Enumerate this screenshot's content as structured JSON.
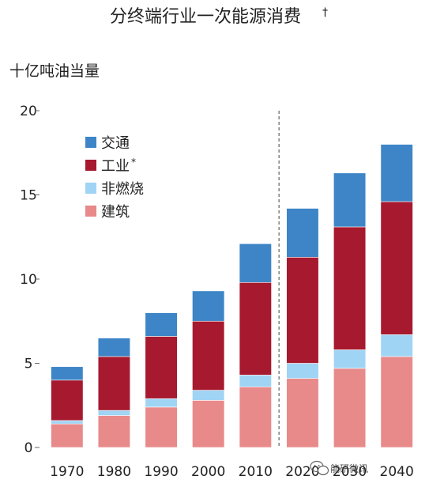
{
  "chart_data": {
    "type": "bar",
    "stacked": true,
    "title": "分终端行业一次能源消费",
    "title_mark": "†",
    "ylabel": "十亿吨油当量",
    "categories": [
      "1970",
      "1980",
      "1990",
      "2000",
      "2010",
      "2020",
      "2030",
      "2040"
    ],
    "ylim": [
      0,
      20
    ],
    "yticks": [
      0,
      5,
      10,
      15,
      20
    ],
    "projection_divider_after": "2010",
    "legend_position": "top-left",
    "series": [
      {
        "name": "建筑",
        "color": "#e88a8a",
        "values": [
          1.4,
          1.9,
          2.4,
          2.8,
          3.6,
          4.1,
          4.7,
          5.4
        ]
      },
      {
        "name": "非燃烧",
        "color": "#9fd4f5",
        "values": [
          0.2,
          0.3,
          0.5,
          0.6,
          0.7,
          0.9,
          1.1,
          1.3
        ]
      },
      {
        "name": "工业",
        "name_mark": "*",
        "color": "#a6192e",
        "values": [
          2.4,
          3.2,
          3.7,
          4.1,
          5.5,
          6.3,
          7.3,
          7.9
        ]
      },
      {
        "name": "交通",
        "color": "#3d85c6",
        "values": [
          0.8,
          1.1,
          1.4,
          1.8,
          2.3,
          2.9,
          3.2,
          3.4
        ]
      }
    ]
  },
  "watermark": "能研微讯",
  "watermark_icon": "wechat-icon"
}
